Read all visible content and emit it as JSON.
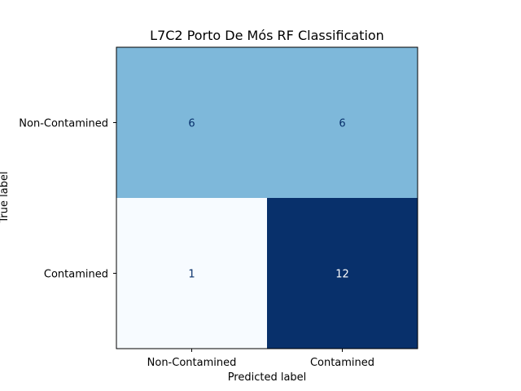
{
  "chart_data": {
    "type": "heatmap",
    "title": "L7C2 Porto De Mós RF Classification",
    "xlabel": "Predicted label",
    "ylabel": "True label",
    "x_categories": [
      "Non-Contamined",
      "Contamined"
    ],
    "y_categories": [
      "Non-Contamined",
      "Contamined"
    ],
    "matrix": [
      [
        6,
        6
      ],
      [
        1,
        12
      ]
    ],
    "colormap": "Blues",
    "colors": {
      "low": "#f7fbff",
      "high": "#08306b",
      "text_dark": "#08306b",
      "text_light": "#ffffff"
    }
  }
}
